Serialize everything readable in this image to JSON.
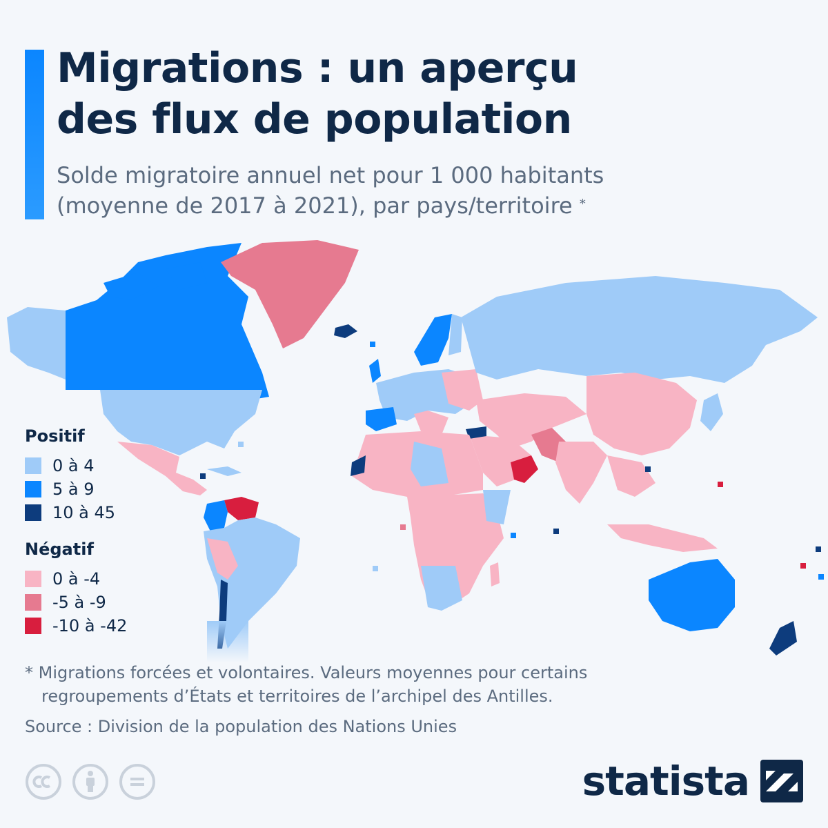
{
  "title": {
    "line1": "Migrations : un aperçu",
    "line2": "des flux de population"
  },
  "subtitle": {
    "line1": "Solde migratoire annuel net pour 1 000 habitants",
    "line2": "(moyenne de 2017 à 2021), par pays/territoire",
    "marker": "*"
  },
  "legend": {
    "positive": {
      "heading": "Positif",
      "items": [
        {
          "label": "0 à 4",
          "color": "#9fcbf8"
        },
        {
          "label": "5 à 9",
          "color": "#0b86ff"
        },
        {
          "label": "10 à 45",
          "color": "#0d3c7d"
        }
      ]
    },
    "negative": {
      "heading": "Négatif",
      "items": [
        {
          "label": "0 à -4",
          "color": "#f8b4c4"
        },
        {
          "label": "-5 à -9",
          "color": "#e67a90"
        },
        {
          "label": "-10 à -42",
          "color": "#d81e3e"
        }
      ]
    }
  },
  "footnote": {
    "line1": "* Migrations forcées et volontaires. Valeurs moyennes pour certains",
    "line2": "regroupements d’États et territoires de l’archipel des Antilles."
  },
  "source": "Source : Division de la population des Nations Unies",
  "logo": {
    "text": "statista"
  },
  "icons": [
    "creative-commons-icon",
    "attribution-icon",
    "no-derivatives-icon"
  ]
}
